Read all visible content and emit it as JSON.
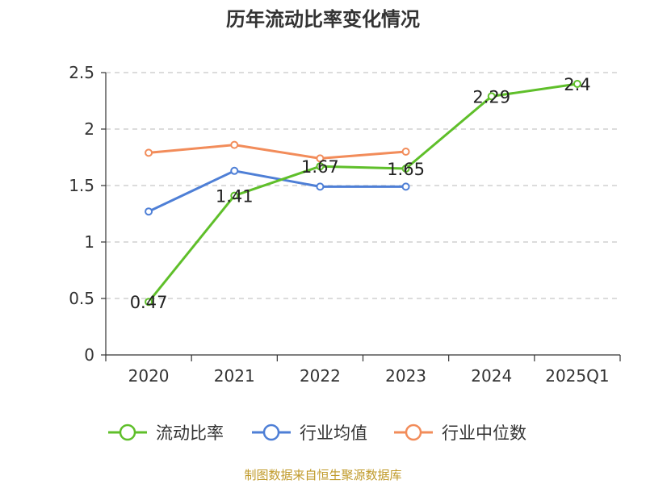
{
  "title": "历年流动比率变化情况",
  "footer": "制图数据来自恒生聚源数据库",
  "chart_data": {
    "type": "line",
    "title": "历年流动比率变化情况",
    "categories": [
      "2020",
      "2021",
      "2022",
      "2023",
      "2024",
      "2025Q1"
    ],
    "ylim": [
      0,
      2.5
    ],
    "yticks": [
      "0",
      "0.5",
      "1",
      "1.5",
      "2",
      "2.5"
    ],
    "grid": true,
    "legend_position": "bottom",
    "series": [
      {
        "name": "流动比率",
        "color": "#5fbf2a",
        "values": [
          0.47,
          1.41,
          1.67,
          1.65,
          2.29,
          2.4
        ],
        "labels": [
          "0.47",
          "1.41",
          "1.67",
          "1.65",
          "2.29",
          "2.4"
        ]
      },
      {
        "name": "行业均值",
        "color": "#4e7fd6",
        "values": [
          1.27,
          1.63,
          1.49,
          1.49,
          null,
          null
        ]
      },
      {
        "name": "行业中位数",
        "color": "#f28c5a",
        "values": [
          1.79,
          1.86,
          1.74,
          1.8,
          null,
          null
        ]
      }
    ]
  }
}
